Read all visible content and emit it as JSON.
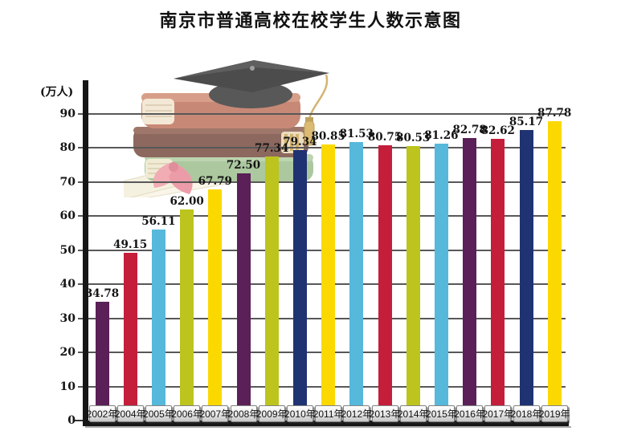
{
  "page": {
    "background": "#ffffff"
  },
  "title": "南京市普通高校在校学生人数示意图",
  "chart_data": {
    "type": "bar",
    "title": "南京市普通高校在校学生人数示意图",
    "xlabel": "",
    "ylabel": "(万人)",
    "ylim": [
      0,
      90
    ],
    "ytick_step": 10,
    "yticks": [
      0,
      10,
      20,
      30,
      40,
      50,
      60,
      70,
      80,
      90
    ],
    "grid": true,
    "legend_position": "none",
    "categories": [
      "2002年",
      "2004年",
      "2005年",
      "2006年",
      "2007年",
      "2008年",
      "2009年",
      "2010年",
      "2011年",
      "2012年",
      "2013年",
      "2014年",
      "2015年",
      "2016年",
      "2017年",
      "2018年",
      "2019年"
    ],
    "values": [
      34.78,
      49.15,
      56.11,
      62.0,
      67.79,
      72.5,
      77.34,
      79.34,
      80.85,
      81.53,
      80.75,
      80.53,
      81.26,
      82.78,
      82.62,
      85.17,
      87.78
    ],
    "value_labels": [
      "34.78",
      "49.15",
      "56.11",
      "62.00",
      "67.79",
      "72.50",
      "77.34",
      "79.34",
      "80.85",
      "81.53",
      "80.75",
      "80.53",
      "81.26",
      "82.78",
      "82.62",
      "85.17",
      "87.78"
    ],
    "bar_colors": [
      "#5a2057",
      "#c41e3b",
      "#56b8db",
      "#bcc41d",
      "#fbd900",
      "#5a2057",
      "#bcc41d",
      "#1f3372",
      "#fbd900",
      "#56b8db",
      "#c41e3b",
      "#bcc41d",
      "#56b8db",
      "#5a2057",
      "#c41e3b",
      "#1f3372",
      "#fbd900"
    ],
    "palette": {
      "purple": "#5a2057",
      "crimson": "#c41e3b",
      "light_blue": "#56b8db",
      "yellow_green": "#bcc41d",
      "yellow": "#fbd900",
      "navy": "#1f3372"
    },
    "axis_color": "#161616",
    "gridline_color": "#585858",
    "category_chip_style": {
      "background_top": "#ffffff",
      "background_bottom": "#c6c6c6",
      "border": "#828282",
      "text": "#111111"
    }
  },
  "decor": {
    "illustration": "books-and-graduation-cap",
    "elements": [
      "mortarboard-cap",
      "tassel",
      "book-stack",
      "diploma-scroll",
      "ribbon-bow"
    ]
  }
}
